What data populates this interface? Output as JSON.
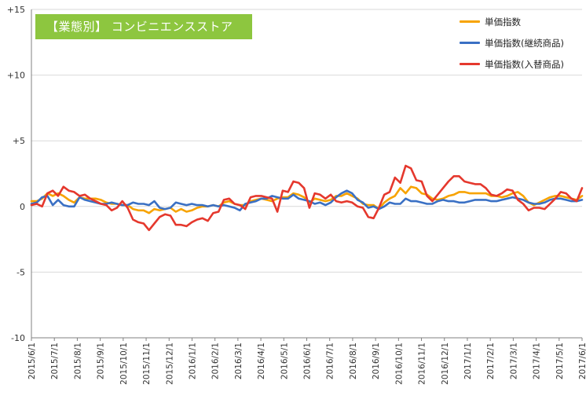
{
  "title": "【業態別】 コンビニエンスストア",
  "colors": {
    "title_bg": "#8dc63f",
    "grid": "#d9d9d9",
    "axis": "#808080"
  },
  "legend": [
    {
      "label": "単価指数",
      "color": "#f7a300"
    },
    {
      "label": "単価指数(継続商品)",
      "color": "#3a70c4"
    },
    {
      "label": "単価指数(入替商品)",
      "color": "#e5382d"
    }
  ],
  "chart_data": {
    "type": "line",
    "title": "【業態別】 コンビニエンスストア",
    "xlabel": "",
    "ylabel": "",
    "ylim": [
      -10,
      15
    ],
    "yticks": [
      -10,
      -5,
      0,
      5,
      10,
      15
    ],
    "ytick_labels": [
      "-10",
      "-5",
      "0",
      "+5",
      "+10",
      "+15"
    ],
    "grid": true,
    "legend_position": "top-right",
    "x_start": "2015/6/1",
    "x_end": "2017/6/1",
    "x_tick_labels": [
      "2015/6/1",
      "2015/7/1",
      "2015/8/1",
      "2015/9/1",
      "2015/10/1",
      "2015/11/1",
      "2015/12/1",
      "2016/1/1",
      "2016/2/1",
      "2016/3/1",
      "2016/4/1",
      "2016/5/1",
      "2016/6/1",
      "2016/7/1",
      "2016/8/1",
      "2016/9/1",
      "2016/10/1",
      "2016/11/1",
      "2016/12/1",
      "2017/1/1",
      "2017/2/1",
      "2017/3/1",
      "2017/4/1",
      "2017/5/1",
      "2017/6/1"
    ],
    "series": [
      {
        "name": "単価指数",
        "color": "#f7a300",
        "values": [
          0.4,
          0.4,
          0.6,
          1.0,
          0.8,
          1.0,
          0.8,
          0.5,
          0.3,
          0.7,
          0.6,
          0.6,
          0.6,
          0.5,
          0.3,
          0.2,
          0.2,
          0.1,
          0.1,
          -0.2,
          -0.3,
          -0.3,
          -0.5,
          -0.2,
          -0.3,
          -0.2,
          -0.1,
          -0.4,
          -0.2,
          -0.4,
          -0.3,
          -0.1,
          0.0,
          0.0,
          0.1,
          0.0,
          0.3,
          0.4,
          0.2,
          0.1,
          0.1,
          0.4,
          0.5,
          0.6,
          0.5,
          0.4,
          0.6,
          0.7,
          0.7,
          1.0,
          0.9,
          0.7,
          0.3,
          0.6,
          0.5,
          0.4,
          0.5,
          0.8,
          0.8,
          1.0,
          0.8,
          0.6,
          0.2,
          0.1,
          0.1,
          -0.2,
          0.3,
          0.6,
          0.8,
          1.4,
          1.0,
          1.5,
          1.4,
          1.0,
          0.9,
          0.6,
          0.5,
          0.6,
          0.8,
          0.9,
          1.1,
          1.1,
          1.0,
          1.0,
          1.0,
          1.0,
          0.8,
          0.8,
          0.7,
          0.8,
          1.0,
          1.1,
          0.8,
          0.3,
          0.1,
          0.3,
          0.5,
          0.7,
          0.8,
          0.8,
          0.7,
          0.6,
          0.5,
          0.8
        ]
      },
      {
        "name": "単価指数(継続商品)",
        "color": "#3a70c4",
        "values": [
          0.2,
          0.3,
          0.7,
          0.8,
          0.1,
          0.5,
          0.1,
          0.0,
          0.0,
          0.7,
          0.5,
          0.4,
          0.3,
          0.2,
          0.2,
          0.3,
          0.2,
          0.1,
          0.1,
          0.3,
          0.2,
          0.2,
          0.1,
          0.4,
          -0.1,
          -0.2,
          -0.1,
          0.3,
          0.2,
          0.1,
          0.2,
          0.1,
          0.1,
          0.0,
          0.1,
          0.0,
          0.1,
          0.0,
          -0.1,
          -0.3,
          0.2,
          0.3,
          0.4,
          0.6,
          0.6,
          0.8,
          0.7,
          0.6,
          0.6,
          0.9,
          0.6,
          0.5,
          0.4,
          0.2,
          0.3,
          0.1,
          0.3,
          0.7,
          1.0,
          1.2,
          1.0,
          0.5,
          0.3,
          -0.1,
          0.0,
          -0.2,
          0.0,
          0.3,
          0.2,
          0.2,
          0.6,
          0.4,
          0.4,
          0.3,
          0.2,
          0.2,
          0.4,
          0.5,
          0.4,
          0.4,
          0.3,
          0.3,
          0.4,
          0.5,
          0.5,
          0.5,
          0.4,
          0.4,
          0.5,
          0.6,
          0.7,
          0.6,
          0.5,
          0.3,
          0.2,
          0.2,
          0.3,
          0.5,
          0.6,
          0.6,
          0.5,
          0.4,
          0.4,
          0.5
        ]
      },
      {
        "name": "単価指数(入替商品)",
        "color": "#e5382d",
        "values": [
          0.1,
          0.2,
          0.0,
          1.0,
          1.2,
          0.8,
          1.5,
          1.2,
          1.1,
          0.8,
          0.9,
          0.6,
          0.4,
          0.2,
          0.1,
          -0.3,
          -0.1,
          0.4,
          -0.1,
          -1.0,
          -1.2,
          -1.3,
          -1.8,
          -1.3,
          -0.8,
          -0.6,
          -0.7,
          -1.4,
          -1.4,
          -1.5,
          -1.2,
          -1.0,
          -0.9,
          -1.1,
          -0.5,
          -0.4,
          0.5,
          0.6,
          0.2,
          0.1,
          -0.2,
          0.7,
          0.8,
          0.8,
          0.7,
          0.6,
          -0.4,
          1.2,
          1.1,
          1.9,
          1.8,
          1.4,
          -0.1,
          1.0,
          0.9,
          0.6,
          0.9,
          0.4,
          0.3,
          0.4,
          0.3,
          0.0,
          -0.1,
          -0.8,
          -0.9,
          -0.1,
          0.9,
          1.1,
          2.2,
          1.8,
          3.1,
          2.9,
          2.0,
          1.9,
          0.8,
          0.4,
          0.9,
          1.4,
          1.9,
          2.3,
          2.3,
          1.9,
          1.8,
          1.7,
          1.7,
          1.4,
          0.9,
          0.8,
          1.0,
          1.3,
          1.2,
          0.5,
          0.2,
          -0.3,
          -0.1,
          -0.1,
          -0.2,
          0.2,
          0.6,
          1.1,
          1.0,
          0.6,
          0.4,
          1.4
        ]
      }
    ]
  }
}
